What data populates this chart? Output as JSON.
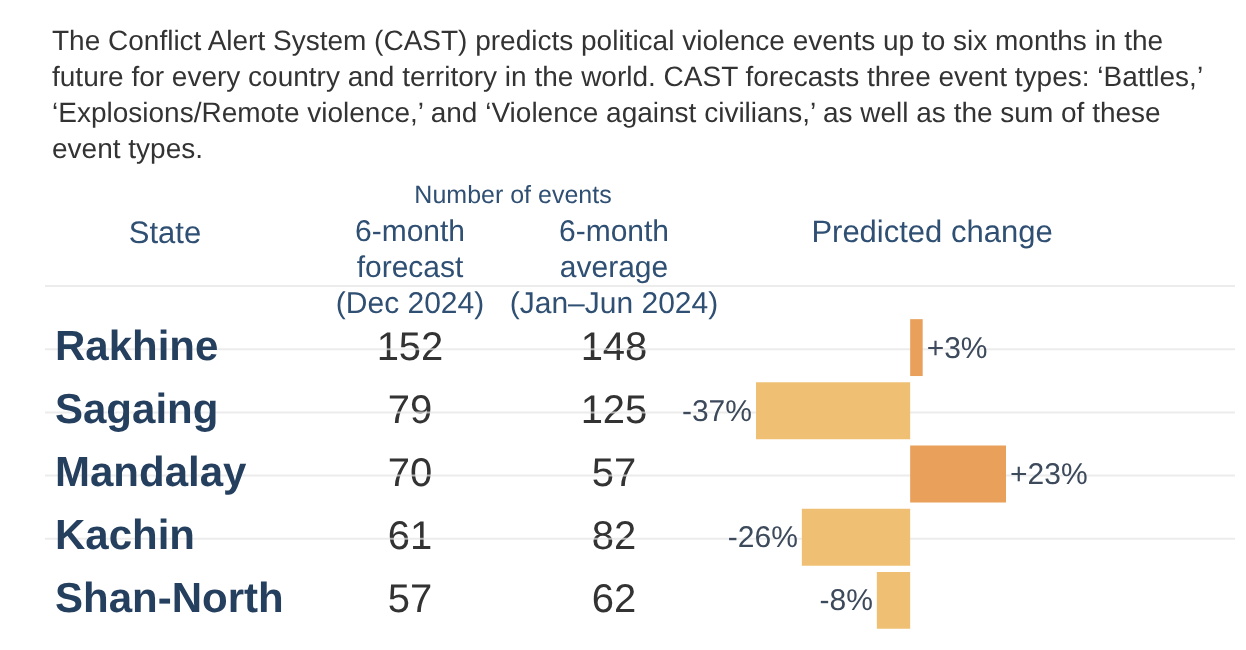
{
  "chart_data": [
    {
      "type": "heatmap",
      "data_labels": true,
      "title": "The Conflict Alert System (CAST) predicts political violence events up to six months in the future for every country and territory in the world. CAST forecasts three event types: ‘Battles,’ ‘Explosions/Remote violence,’ and ‘Violence against civilians,’ as well as the sum of these event types.",
      "xlabel": "Number of events",
      "ylabel": "State",
      "categories": [
        "6-month forecast (Dec 2024)",
        "6-month average (Jan–Jun 2024)"
      ],
      "y_categories": [
        "Rakhine",
        "Sagaing",
        "Mandalay",
        "Kachin",
        "Shan-North"
      ],
      "cells": [
        [
          152,
          148
        ],
        [
          79,
          125
        ],
        [
          70,
          57
        ],
        [
          61,
          82
        ],
        [
          57,
          62
        ]
      ]
    },
    {
      "type": "bar",
      "orientation": "horizontal",
      "xlabel": "Predicted change",
      "categories": [
        null,
        null,
        null,
        null,
        null
      ],
      "values": [
        3,
        -37,
        23,
        -26,
        -8
      ],
      "value_labels": [
        "+3%",
        "-37%",
        "+23%",
        "-26%",
        "-8%"
      ],
      "colors": [
        "#e8a05a",
        "#efc073",
        "#e8a05a",
        "#efc073",
        "#efc073"
      ]
    }
  ]
}
